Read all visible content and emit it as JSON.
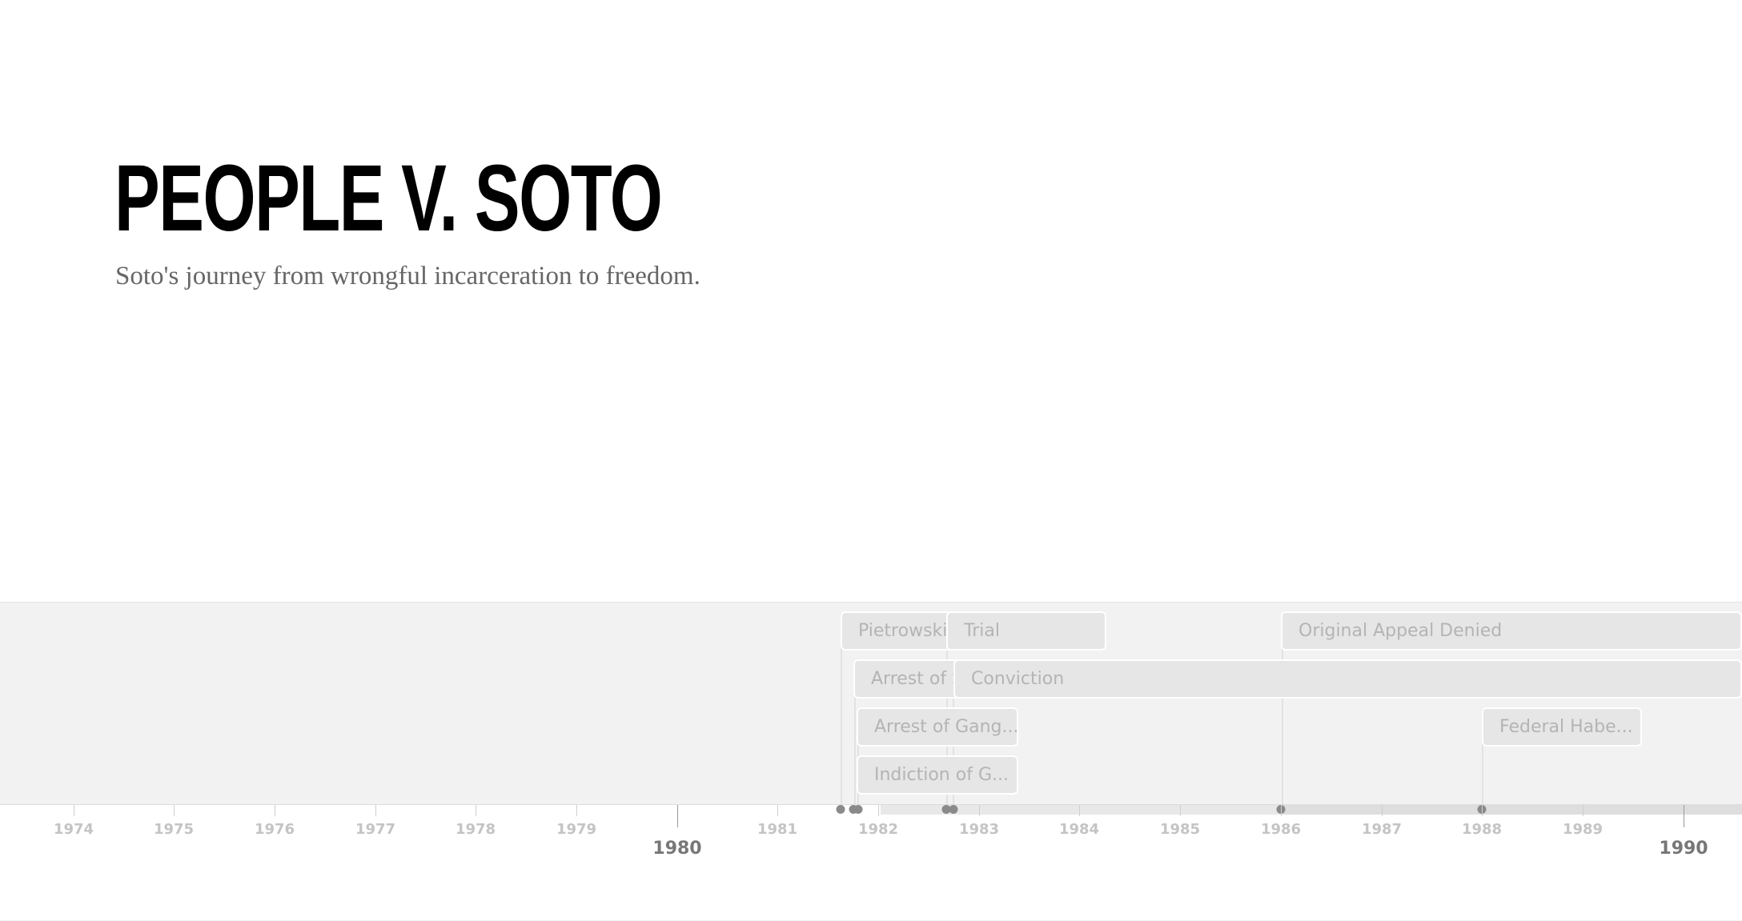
{
  "slide": {
    "title": "PEOPLE V. SOTO",
    "subtitle": "Soto's journey from wrongful incarceration to freedom."
  },
  "timeline": {
    "events": [
      {
        "label": "Pietrowski"
      },
      {
        "label": "Trial"
      },
      {
        "label": "Original Appeal Denied"
      },
      {
        "label": "Arrest of S"
      },
      {
        "label": "Conviction"
      },
      {
        "label": "Arrest of Gang..."
      },
      {
        "label": "Federal Habe..."
      },
      {
        "label": "Indiction of G..."
      }
    ],
    "axis_minor": [
      "1974",
      "1975",
      "1976",
      "1977",
      "1978",
      "1979",
      "1981",
      "1982",
      "1983",
      "1984",
      "1985",
      "1986",
      "1987",
      "1988",
      "1989"
    ],
    "axis_major": [
      "1980",
      "1990"
    ]
  }
}
